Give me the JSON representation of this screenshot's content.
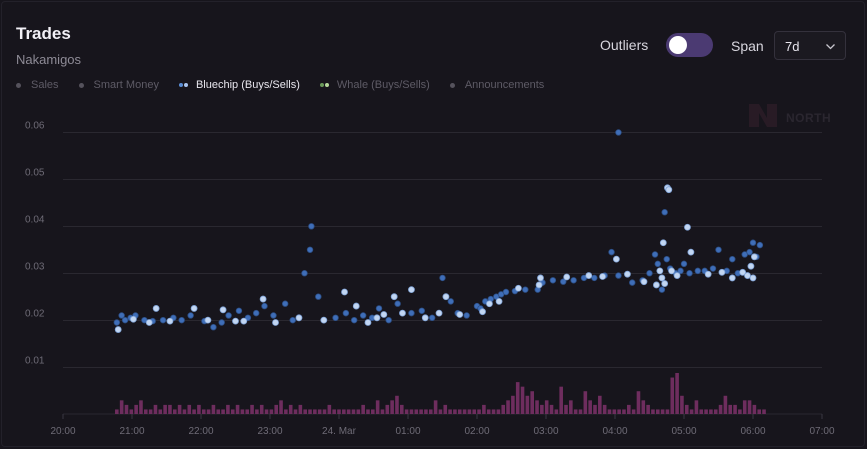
{
  "header": {
    "title": "Trades",
    "subtitle": "Nakamigos"
  },
  "legend": [
    {
      "label": "Sales",
      "active": false,
      "dots": [
        "#55525c"
      ]
    },
    {
      "label": "Smart Money",
      "active": false,
      "dots": [
        "#55525c"
      ]
    },
    {
      "label": "Bluechip (Buys/Sells)",
      "active": true,
      "dots": [
        "#5b8ed6",
        "#a9c4ee"
      ]
    },
    {
      "label": "Whale (Buys/Sells)",
      "active": false,
      "dots": [
        "#6a9a5a",
        "#b4d69a"
      ]
    },
    {
      "label": "Announcements",
      "active": false,
      "dots": [
        "#55525c"
      ]
    }
  ],
  "controls": {
    "outliers_label": "Outliers",
    "span_label": "Span",
    "span_value": "7d"
  },
  "watermark": {
    "text": "NORTH"
  },
  "colors": {
    "buy": "#3f6eb8",
    "sell": "#c2d6f2",
    "volume": "#6e2d5e",
    "grid": "#2a2830",
    "background": "#17151c"
  },
  "chart_data": {
    "type": "scatter",
    "title": "Trades",
    "xlabel": "",
    "ylabel": "",
    "x_unit": "hours since 20:00",
    "xlim": [
      0,
      11
    ],
    "ylim": [
      0,
      0.065
    ],
    "y_ticks": [
      0.01,
      0.02,
      0.03,
      0.04,
      0.05,
      0.06
    ],
    "x_ticks": [
      {
        "value": 0,
        "label": "20:00"
      },
      {
        "value": 1,
        "label": "21:00"
      },
      {
        "value": 2,
        "label": "22:00"
      },
      {
        "value": 3,
        "label": "23:00"
      },
      {
        "value": 4,
        "label": "24. Mar"
      },
      {
        "value": 5,
        "label": "01:00"
      },
      {
        "value": 6,
        "label": "02:00"
      },
      {
        "value": 7,
        "label": "03:00"
      },
      {
        "value": 8,
        "label": "04:00"
      },
      {
        "value": 9,
        "label": "05:00"
      },
      {
        "value": 10,
        "label": "06:00"
      },
      {
        "value": 11,
        "label": "07:00"
      }
    ],
    "series": [
      {
        "name": "Bluechip Buys",
        "points": [
          [
            0.78,
            0.0195
          ],
          [
            0.85,
            0.021
          ],
          [
            0.9,
            0.02
          ],
          [
            0.98,
            0.0205
          ],
          [
            1.05,
            0.021
          ],
          [
            1.18,
            0.02
          ],
          [
            1.3,
            0.0198
          ],
          [
            1.45,
            0.02
          ],
          [
            1.6,
            0.0205
          ],
          [
            1.72,
            0.02
          ],
          [
            1.85,
            0.021
          ],
          [
            2.05,
            0.0198
          ],
          [
            2.18,
            0.0185
          ],
          [
            2.3,
            0.0195
          ],
          [
            2.4,
            0.021
          ],
          [
            2.55,
            0.022
          ],
          [
            2.68,
            0.0205
          ],
          [
            2.8,
            0.0215
          ],
          [
            2.92,
            0.023
          ],
          [
            3.05,
            0.021
          ],
          [
            3.22,
            0.0235
          ],
          [
            3.33,
            0.02
          ],
          [
            3.5,
            0.03
          ],
          [
            3.58,
            0.035
          ],
          [
            3.6,
            0.04
          ],
          [
            3.7,
            0.025
          ],
          [
            3.95,
            0.0205
          ],
          [
            4.1,
            0.0215
          ],
          [
            4.22,
            0.02
          ],
          [
            4.35,
            0.021
          ],
          [
            4.48,
            0.0205
          ],
          [
            4.58,
            0.0225
          ],
          [
            4.72,
            0.02
          ],
          [
            4.85,
            0.0235
          ],
          [
            5.05,
            0.0215
          ],
          [
            5.2,
            0.022
          ],
          [
            5.35,
            0.0205
          ],
          [
            5.5,
            0.029
          ],
          [
            5.62,
            0.024
          ],
          [
            5.72,
            0.0215
          ],
          [
            5.85,
            0.021
          ],
          [
            6.0,
            0.023
          ],
          [
            6.05,
            0.0225
          ],
          [
            6.12,
            0.024
          ],
          [
            6.2,
            0.0245
          ],
          [
            6.28,
            0.025
          ],
          [
            6.35,
            0.0255
          ],
          [
            6.42,
            0.026
          ],
          [
            6.55,
            0.0262
          ],
          [
            6.7,
            0.0265
          ],
          [
            6.88,
            0.0265
          ],
          [
            6.95,
            0.028
          ],
          [
            7.1,
            0.0285
          ],
          [
            7.25,
            0.0282
          ],
          [
            7.4,
            0.0285
          ],
          [
            7.55,
            0.029
          ],
          [
            7.7,
            0.029
          ],
          [
            7.85,
            0.0295
          ],
          [
            7.95,
            0.0345
          ],
          [
            8.05,
            0.0295
          ],
          [
            8.05,
            0.06
          ],
          [
            8.25,
            0.028
          ],
          [
            8.4,
            0.0285
          ],
          [
            8.5,
            0.03
          ],
          [
            8.58,
            0.034
          ],
          [
            8.62,
            0.032
          ],
          [
            8.68,
            0.0265
          ],
          [
            8.72,
            0.043
          ],
          [
            8.75,
            0.033
          ],
          [
            8.8,
            0.031
          ],
          [
            8.88,
            0.03
          ],
          [
            8.95,
            0.0305
          ],
          [
            9.0,
            0.032
          ],
          [
            9.08,
            0.03
          ],
          [
            9.2,
            0.0305
          ],
          [
            9.3,
            0.0305
          ],
          [
            9.42,
            0.031
          ],
          [
            9.5,
            0.035
          ],
          [
            9.62,
            0.0305
          ],
          [
            9.7,
            0.033
          ],
          [
            9.78,
            0.03
          ],
          [
            9.88,
            0.034
          ],
          [
            9.95,
            0.0345
          ],
          [
            10.05,
            0.0335
          ],
          [
            10.0,
            0.0365
          ],
          [
            10.1,
            0.036
          ]
        ]
      },
      {
        "name": "Bluechip Sells",
        "points": [
          [
            0.8,
            0.018
          ],
          [
            1.02,
            0.0202
          ],
          [
            1.25,
            0.0195
          ],
          [
            1.35,
            0.0225
          ],
          [
            1.55,
            0.0198
          ],
          [
            1.9,
            0.0225
          ],
          [
            2.1,
            0.02
          ],
          [
            2.32,
            0.0222
          ],
          [
            2.5,
            0.0198
          ],
          [
            2.62,
            0.0198
          ],
          [
            2.9,
            0.0245
          ],
          [
            3.08,
            0.0195
          ],
          [
            3.42,
            0.0205
          ],
          [
            3.78,
            0.02
          ],
          [
            4.08,
            0.026
          ],
          [
            4.25,
            0.023
          ],
          [
            4.42,
            0.0195
          ],
          [
            4.55,
            0.0205
          ],
          [
            4.65,
            0.0212
          ],
          [
            4.8,
            0.025
          ],
          [
            4.92,
            0.0215
          ],
          [
            5.05,
            0.0265
          ],
          [
            5.25,
            0.0205
          ],
          [
            5.45,
            0.0215
          ],
          [
            5.55,
            0.025
          ],
          [
            5.75,
            0.0212
          ],
          [
            6.08,
            0.0218
          ],
          [
            6.18,
            0.0235
          ],
          [
            6.32,
            0.024
          ],
          [
            6.6,
            0.0268
          ],
          [
            6.9,
            0.0275
          ],
          [
            6.92,
            0.029
          ],
          [
            7.3,
            0.0292
          ],
          [
            7.62,
            0.0295
          ],
          [
            7.82,
            0.0293
          ],
          [
            8.02,
            0.033
          ],
          [
            8.18,
            0.0298
          ],
          [
            8.42,
            0.0282
          ],
          [
            8.6,
            0.0275
          ],
          [
            8.65,
            0.0305
          ],
          [
            8.68,
            0.029
          ],
          [
            8.7,
            0.0365
          ],
          [
            8.72,
            0.0278
          ],
          [
            8.76,
            0.0482
          ],
          [
            8.78,
            0.0478
          ],
          [
            8.82,
            0.0305
          ],
          [
            8.9,
            0.0295
          ],
          [
            9.05,
            0.0398
          ],
          [
            9.1,
            0.0345
          ],
          [
            9.35,
            0.0298
          ],
          [
            9.55,
            0.0302
          ],
          [
            9.7,
            0.029
          ],
          [
            9.85,
            0.0302
          ],
          [
            9.92,
            0.0295
          ],
          [
            9.97,
            0.0315
          ],
          [
            10.0,
            0.029
          ],
          [
            10.02,
            0.0335
          ]
        ]
      }
    ],
    "volume_bars": {
      "name": "Volume",
      "x": [
        0.78,
        0.85,
        0.92,
        0.99,
        1.06,
        1.13,
        1.2,
        1.27,
        1.34,
        1.41,
        1.48,
        1.55,
        1.62,
        1.69,
        1.76,
        1.83,
        1.9,
        1.97,
        2.04,
        2.11,
        2.18,
        2.25,
        2.32,
        2.39,
        2.46,
        2.53,
        2.6,
        2.67,
        2.74,
        2.81,
        2.88,
        2.95,
        3.02,
        3.09,
        3.16,
        3.23,
        3.3,
        3.37,
        3.44,
        3.51,
        3.58,
        3.65,
        3.72,
        3.79,
        3.86,
        3.93,
        4.0,
        4.07,
        4.14,
        4.21,
        4.28,
        4.35,
        4.42,
        4.49,
        4.56,
        4.63,
        4.7,
        4.77,
        4.84,
        4.91,
        4.98,
        5.05,
        5.12,
        5.19,
        5.26,
        5.33,
        5.4,
        5.47,
        5.54,
        5.61,
        5.68,
        5.75,
        5.82,
        5.89,
        5.96,
        6.03,
        6.1,
        6.17,
        6.24,
        6.31,
        6.38,
        6.45,
        6.52,
        6.59,
        6.66,
        6.73,
        6.8,
        6.87,
        6.94,
        7.01,
        7.08,
        7.15,
        7.22,
        7.29,
        7.36,
        7.43,
        7.5,
        7.57,
        7.64,
        7.71,
        7.78,
        7.85,
        7.92,
        7.99,
        8.06,
        8.13,
        8.2,
        8.27,
        8.34,
        8.41,
        8.48,
        8.55,
        8.62,
        8.69,
        8.76,
        8.83,
        8.9,
        8.97,
        9.04,
        9.11,
        9.18,
        9.25,
        9.32,
        9.39,
        9.46,
        9.53,
        9.6,
        9.67,
        9.74,
        9.81,
        9.88,
        9.95,
        10.02,
        10.09,
        10.16
      ],
      "values": [
        1,
        3,
        2,
        1,
        2,
        3,
        1,
        1,
        2,
        1,
        2,
        2,
        1,
        2,
        1,
        2,
        1,
        2,
        1,
        1,
        2,
        1,
        1,
        2,
        1,
        2,
        1,
        1,
        2,
        1,
        2,
        1,
        1,
        2,
        3,
        1,
        2,
        1,
        2,
        1,
        1,
        1,
        1,
        1,
        2,
        1,
        1,
        1,
        1,
        1,
        1,
        2,
        1,
        1,
        3,
        1,
        2,
        3,
        4,
        2,
        1,
        1,
        1,
        1,
        1,
        1,
        3,
        1,
        2,
        1,
        1,
        1,
        1,
        1,
        1,
        1,
        2,
        1,
        1,
        1,
        2,
        3,
        4,
        7,
        6,
        4,
        5,
        3,
        2,
        3,
        2,
        1,
        6,
        2,
        3,
        1,
        1,
        5,
        3,
        2,
        4,
        2,
        1,
        1,
        1,
        1,
        2,
        1,
        5,
        3,
        2,
        1,
        1,
        1,
        1,
        8,
        9,
        4,
        2,
        1,
        3,
        1,
        1,
        1,
        1,
        2,
        4,
        2,
        2,
        1,
        3,
        3,
        2,
        1,
        1
      ]
    }
  }
}
